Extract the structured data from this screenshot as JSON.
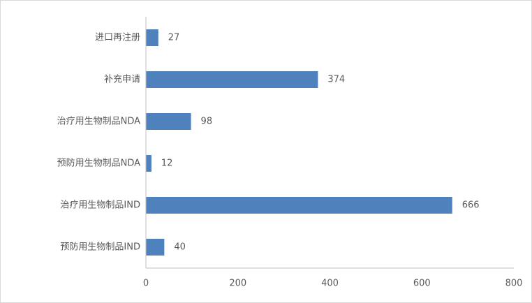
{
  "colors": {
    "bar": "#4f81bd",
    "axis": "#bfbfbf",
    "text": "#595959"
  },
  "chart_data": {
    "type": "bar",
    "orientation": "horizontal",
    "title": "",
    "xlabel": "",
    "ylabel": "",
    "categories": [
      "进口再注册",
      "补充申请",
      "治疗用生物制品NDA",
      "预防用生物制品NDA",
      "治疗用生物制品IND",
      "预防用生物制品IND"
    ],
    "values": [
      27,
      374,
      98,
      12,
      666,
      40
    ],
    "data_labels": [
      "27",
      "374",
      "98",
      "12",
      "666",
      "40"
    ],
    "xlim": [
      0,
      800
    ],
    "xticks": [
      0,
      200,
      400,
      600,
      800
    ],
    "xtick_labels": [
      "0",
      "200",
      "400",
      "600",
      "800"
    ],
    "grid": false,
    "legend": "none"
  }
}
